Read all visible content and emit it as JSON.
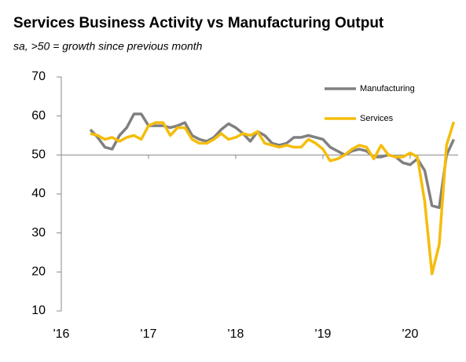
{
  "chart_data": {
    "type": "line",
    "title": "Services Business Activity vs Manufacturing Output",
    "subtitle": "sa, >50 = growth since previous month",
    "x": [
      2016.333,
      2016.417,
      2016.5,
      2016.583,
      2016.667,
      2016.75,
      2016.833,
      2016.917,
      2017,
      2017.083,
      2017.167,
      2017.25,
      2017.333,
      2017.417,
      2017.5,
      2017.583,
      2017.667,
      2017.75,
      2017.833,
      2017.917,
      2018,
      2018.083,
      2018.167,
      2018.25,
      2018.333,
      2018.417,
      2018.5,
      2018.583,
      2018.667,
      2018.75,
      2018.833,
      2018.917,
      2019,
      2019.083,
      2019.167,
      2019.25,
      2019.333,
      2019.417,
      2019.5,
      2019.583,
      2019.667,
      2019.75,
      2019.833,
      2019.917,
      2020,
      2020.083,
      2020.167,
      2020.25,
      2020.333,
      2020.417,
      2020.5
    ],
    "series": [
      {
        "name": "Manufacturing",
        "color": "#808080",
        "values": [
          56.5,
          54.5,
          52,
          51.5,
          55,
          57,
          60.5,
          60.5,
          57.5,
          57.5,
          57.5,
          57,
          57.5,
          58.3,
          55,
          54,
          53.5,
          54.5,
          56.5,
          58,
          57,
          55.5,
          53.5,
          56,
          55,
          53,
          52.5,
          53,
          54.5,
          54.5,
          55,
          54.5,
          54,
          52,
          51,
          50,
          51,
          51.5,
          51,
          49.5,
          49.5,
          50,
          49.5,
          48,
          47.5,
          49,
          46,
          37,
          36.5,
          50,
          54
        ]
      },
      {
        "name": "Services",
        "color": "#f5bd0a",
        "values": [
          55.5,
          55,
          54,
          54.5,
          53.5,
          54.5,
          55,
          54,
          57.5,
          58.3,
          58.3,
          55,
          57,
          57,
          54,
          53,
          53,
          54,
          55.5,
          54,
          54.5,
          55.5,
          55,
          56,
          53,
          52.5,
          52,
          52.5,
          52,
          52,
          54,
          53,
          51.5,
          48.5,
          49,
          50,
          51.5,
          52.5,
          52,
          49,
          52.5,
          50,
          49.5,
          49.5,
          50.5,
          49.5,
          38,
          19.5,
          27,
          52.5,
          58.5
        ]
      }
    ],
    "xlim": [
      2016,
      2020.55
    ],
    "xticks": [
      {
        "value": 2016,
        "label": "'16"
      },
      {
        "value": 2017,
        "label": "'17"
      },
      {
        "value": 2018,
        "label": "'18"
      },
      {
        "value": 2019,
        "label": "'19"
      },
      {
        "value": 2020,
        "label": "'20"
      }
    ],
    "ylim": [
      10,
      70
    ],
    "yticks": [
      10,
      20,
      30,
      40,
      50,
      60,
      70
    ],
    "xaxis_cross": 50,
    "legend": "top-right",
    "grid": false
  }
}
